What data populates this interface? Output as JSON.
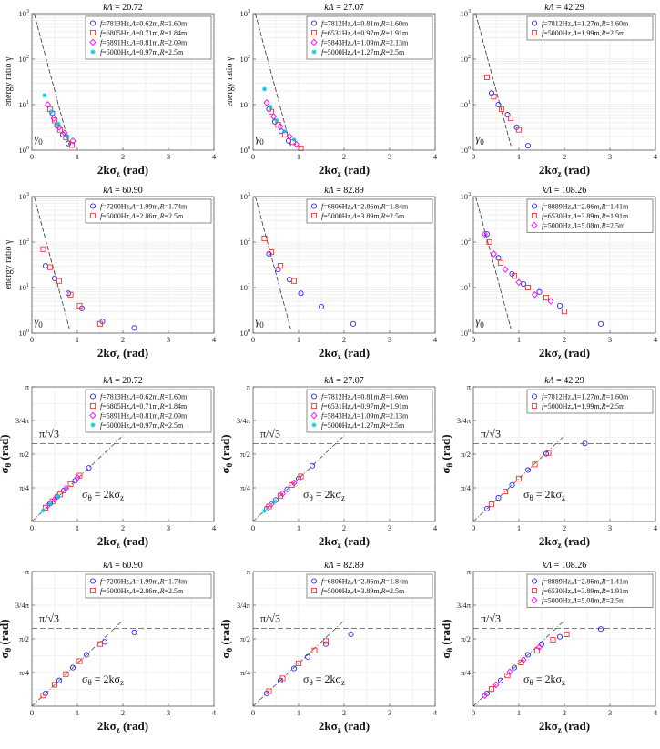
{
  "colors": {
    "blue": "#2a2aff",
    "red": "#ff3030",
    "magenta": "#ff00ff",
    "cyan": "#00c8dc",
    "grid": "#e6e6e6",
    "frame": "#555555",
    "ref": "#333333"
  },
  "chart_data": [
    {
      "type": "scatter",
      "panel_kind": "gamma",
      "title": "kΛ = 20.72",
      "xlabel": "2kσ_z (rad)",
      "ylabel": "energy ratio γ",
      "xlim": [
        0,
        4
      ],
      "ylim": [
        1,
        1000
      ],
      "yscale": "log",
      "grid": true,
      "legend": "top-right",
      "annotations": [
        "γ0"
      ],
      "series": [
        {
          "name": "f=7813Hz,Λ=0.62m,R=1.60m",
          "marker": "circle",
          "color": "blue",
          "x": [
            0.45,
            0.55,
            0.68,
            0.8
          ],
          "y": [
            6.5,
            3.5,
            2.2,
            1.4
          ]
        },
        {
          "name": "f=6805Hz,Λ=0.71m,R=1.84m",
          "marker": "square",
          "color": "red",
          "x": [
            0.4,
            0.5,
            0.62,
            0.75,
            0.88
          ],
          "y": [
            8,
            4.5,
            2.8,
            1.9,
            1.3
          ]
        },
        {
          "name": "f=5891Hz,Λ=0.81m,R=2.09m",
          "marker": "diamond",
          "color": "magenta",
          "x": [
            0.35,
            0.48,
            0.6,
            0.72,
            0.9
          ],
          "y": [
            10,
            5,
            3.2,
            2.4,
            1.6
          ]
        },
        {
          "name": "f=5000Hz,Λ=0.97m,R=2.5m",
          "marker": "star",
          "color": "cyan",
          "x": [
            0.28,
            0.42,
            0.58,
            0.78
          ],
          "y": [
            16,
            7,
            3.8,
            2.0
          ]
        }
      ]
    },
    {
      "type": "scatter",
      "panel_kind": "gamma",
      "title": "kΛ = 27.07",
      "xlabel": "2kσ_z (rad)",
      "ylabel": "energy ratio γ",
      "xlim": [
        0,
        4
      ],
      "ylim": [
        1,
        1000
      ],
      "yscale": "log",
      "grid": true,
      "legend": "top-right",
      "annotations": [
        "γ0"
      ],
      "series": [
        {
          "name": "f=7812Hz,Λ=0.81m,R=1.60m",
          "marker": "circle",
          "color": "blue",
          "x": [
            0.35,
            0.48,
            0.62,
            0.78
          ],
          "y": [
            8,
            4.2,
            2.6,
            1.6
          ]
        },
        {
          "name": "f=6531Hz,Λ=0.97m,R=1.91m",
          "marker": "square",
          "color": "red",
          "x": [
            0.4,
            0.55,
            0.7,
            0.88,
            1.05
          ],
          "y": [
            7,
            3.6,
            2.2,
            1.5,
            1.1
          ]
        },
        {
          "name": "f=5843Hz,Λ=1.09m,R=2.13m",
          "marker": "diamond",
          "color": "magenta",
          "x": [
            0.3,
            0.45,
            0.6,
            0.8,
            0.95
          ],
          "y": [
            11,
            5.5,
            3.3,
            2.0,
            1.35
          ]
        },
        {
          "name": "f=5000Hz,Λ=1.27m,R=2.5m",
          "marker": "star",
          "color": "cyan",
          "x": [
            0.25,
            0.38,
            0.52,
            0.7,
            0.9
          ],
          "y": [
            22,
            9,
            4.5,
            2.6,
            1.7
          ]
        }
      ]
    },
    {
      "type": "scatter",
      "panel_kind": "gamma",
      "title": "kΛ = 42.29",
      "xlabel": "2kσ_z (rad)",
      "ylabel": "",
      "xlim": [
        0,
        4
      ],
      "ylim": [
        1,
        1000
      ],
      "yscale": "log",
      "grid": true,
      "legend": "top-right",
      "annotations": [
        "γ0"
      ],
      "series": [
        {
          "name": "f=7812Hz,Λ=1.27m,R=1.60m",
          "marker": "circle",
          "color": "blue",
          "x": [
            0.4,
            0.55,
            0.75,
            0.95,
            1.2
          ],
          "y": [
            18,
            10,
            6,
            3.2,
            1.25
          ]
        },
        {
          "name": "f=5000Hz,Λ=1.99m,R=2.5m",
          "marker": "square",
          "color": "red",
          "x": [
            0.3,
            0.45,
            0.62,
            0.82,
            1.0
          ],
          "y": [
            40,
            15,
            8,
            5,
            2.8
          ]
        }
      ]
    },
    {
      "type": "scatter",
      "panel_kind": "gamma",
      "title": "kΛ = 60.90",
      "xlabel": "2kσ_z (rad)",
      "ylabel": "energy ratio γ",
      "xlim": [
        0,
        4
      ],
      "ylim": [
        1,
        1000
      ],
      "yscale": "log",
      "grid": true,
      "legend": "top-right",
      "annotations": [
        "γ0"
      ],
      "series": [
        {
          "name": "f=7200Hz,Λ=1.99m,R=1.74m",
          "marker": "circle",
          "color": "blue",
          "x": [
            0.3,
            0.5,
            0.8,
            1.1,
            1.55,
            2.25
          ],
          "y": [
            30,
            16,
            7.5,
            3.5,
            1.8,
            1.3
          ]
        },
        {
          "name": "f=5000Hz,Λ=2.86m,R=2.5m",
          "marker": "square",
          "color": "red",
          "x": [
            0.25,
            0.4,
            0.6,
            0.85,
            1.05,
            1.5
          ],
          "y": [
            70,
            28,
            14,
            7,
            4,
            1.6
          ]
        }
      ]
    },
    {
      "type": "scatter",
      "panel_kind": "gamma",
      "title": "kΛ = 82.89",
      "xlabel": "2kσ_z (rad)",
      "ylabel": "",
      "xlim": [
        0,
        4
      ],
      "ylim": [
        1,
        1000
      ],
      "yscale": "log",
      "grid": true,
      "legend": "top-right",
      "annotations": [
        "γ0"
      ],
      "series": [
        {
          "name": "f=6806Hz,Λ=2.86m,R=1.84m",
          "marker": "circle",
          "color": "blue",
          "x": [
            0.35,
            0.55,
            0.8,
            1.05,
            1.5,
            2.2
          ],
          "y": [
            55,
            25,
            15,
            7.5,
            3.8,
            1.6
          ]
        },
        {
          "name": "f=5000Hz,Λ=3.89m,R=2.5m",
          "marker": "square",
          "color": "red",
          "x": [
            0.25,
            0.4,
            0.6,
            0.9
          ],
          "y": [
            120,
            60,
            30,
            14
          ]
        }
      ]
    },
    {
      "type": "scatter",
      "panel_kind": "gamma",
      "title": "kΛ = 108.26",
      "xlabel": "2kσ_z (rad)",
      "ylabel": "",
      "xlim": [
        0,
        4
      ],
      "ylim": [
        1,
        1000
      ],
      "yscale": "log",
      "grid": true,
      "legend": "top-right",
      "annotations": [
        "γ0"
      ],
      "series": [
        {
          "name": "f=8889Hz,Λ=2.86m,R=1.41m",
          "marker": "circle",
          "color": "blue",
          "x": [
            0.3,
            0.55,
            0.85,
            1.1,
            1.45,
            1.9,
            2.8
          ],
          "y": [
            150,
            45,
            20,
            12,
            8,
            4,
            1.6
          ]
        },
        {
          "name": "f=6530Hz,Λ=3.89m,R=1.91m",
          "marker": "square",
          "color": "red",
          "x": [
            0.35,
            0.6,
            0.9,
            1.2,
            1.6,
            2.0
          ],
          "y": [
            100,
            35,
            18,
            10,
            6,
            3
          ]
        },
        {
          "name": "f=5000Hz,Λ=5.08m,R=2.5m",
          "marker": "diamond",
          "color": "magenta",
          "x": [
            0.25,
            0.45,
            0.7,
            1.0,
            1.35,
            1.7
          ],
          "y": [
            150,
            55,
            25,
            13,
            7,
            5
          ]
        }
      ]
    },
    {
      "type": "scatter",
      "panel_kind": "sigma",
      "title": "kΛ = 20.72",
      "xlabel": "2kσ_z (rad)",
      "ylabel": "σθ (rad)",
      "xlim": [
        0,
        4
      ],
      "ylim": [
        0,
        3.14159
      ],
      "ytick_labels": [
        "π/4",
        "π/2",
        "3/4π",
        "π"
      ],
      "grid": true,
      "legend": "top-right",
      "annotations": [
        "π/√3",
        "σθ = 2kσz"
      ],
      "series": [
        {
          "name": "f=7813Hz,Λ=0.62m,R=1.60m",
          "marker": "circle",
          "color": "blue",
          "x": [
            0.4,
            0.55,
            0.7,
            0.95,
            1.25
          ],
          "y": [
            0.42,
            0.58,
            0.72,
            0.95,
            1.25
          ]
        },
        {
          "name": "f=6805Hz,Λ=0.71m,R=1.84m",
          "marker": "square",
          "color": "red",
          "x": [
            0.3,
            0.45,
            0.62,
            0.85,
            1.05
          ],
          "y": [
            0.32,
            0.47,
            0.63,
            0.87,
            1.07
          ]
        },
        {
          "name": "f=5891Hz,Λ=0.81m,R=2.09m",
          "marker": "diamond",
          "color": "magenta",
          "x": [
            0.35,
            0.5,
            0.75,
            1.0
          ],
          "y": [
            0.37,
            0.52,
            0.77,
            1.02
          ]
        },
        {
          "name": "f=5000Hz,Λ=0.97m,R=2.5m",
          "marker": "star",
          "color": "cyan",
          "x": [
            0.25,
            0.4,
            0.58
          ],
          "y": [
            0.26,
            0.4,
            0.58
          ]
        }
      ]
    },
    {
      "type": "scatter",
      "panel_kind": "sigma",
      "title": "kΛ = 27.07",
      "xlabel": "2kσ_z (rad)",
      "ylabel": "σθ (rad)",
      "xlim": [
        0,
        4
      ],
      "ylim": [
        0,
        3.14159
      ],
      "ytick_labels": [
        "π/4",
        "π/2",
        "3/4π",
        "π"
      ],
      "grid": true,
      "legend": "top-right",
      "annotations": [
        "π/√3",
        "σθ = 2kσz"
      ],
      "series": [
        {
          "name": "f=7812Hz,Λ=0.81m,R=1.60m",
          "marker": "circle",
          "color": "blue",
          "x": [
            0.3,
            0.5,
            0.75,
            1.0,
            1.3
          ],
          "y": [
            0.3,
            0.5,
            0.75,
            1.0,
            1.3
          ]
        },
        {
          "name": "f=6531Hz,Λ=0.97m,R=1.91m",
          "marker": "square",
          "color": "red",
          "x": [
            0.35,
            0.6,
            0.85,
            1.05
          ],
          "y": [
            0.35,
            0.6,
            0.85,
            1.05
          ]
        },
        {
          "name": "f=5843Hz,Λ=1.09m,R=2.13m",
          "marker": "diamond",
          "color": "magenta",
          "x": [
            0.4,
            0.65,
            0.9
          ],
          "y": [
            0.4,
            0.65,
            0.9
          ]
        },
        {
          "name": "f=5000Hz,Λ=1.27m,R=2.5m",
          "marker": "star",
          "color": "cyan",
          "x": [
            0.25,
            0.45
          ],
          "y": [
            0.25,
            0.45
          ]
        }
      ]
    },
    {
      "type": "scatter",
      "panel_kind": "sigma",
      "title": "kΛ = 42.29",
      "xlabel": "2kσ_z (rad)",
      "ylabel": "σθ (rad)",
      "xlim": [
        0,
        4
      ],
      "ylim": [
        0,
        3.14159
      ],
      "ytick_labels": [
        "π/4",
        "π/2",
        "3/4π",
        "π"
      ],
      "grid": true,
      "legend": "top-right",
      "annotations": [
        "π/√3",
        "σθ = 2kσz"
      ],
      "series": [
        {
          "name": "f=7812Hz,Λ=1.27m,R=1.60m",
          "marker": "circle",
          "color": "blue",
          "x": [
            0.3,
            0.55,
            0.85,
            1.2,
            1.6,
            2.45
          ],
          "y": [
            0.3,
            0.55,
            0.85,
            1.2,
            1.58,
            1.82
          ]
        },
        {
          "name": "f=5000Hz,Λ=1.99m,R=2.5m",
          "marker": "square",
          "color": "red",
          "x": [
            0.4,
            0.7,
            1.0,
            1.35,
            1.65
          ],
          "y": [
            0.4,
            0.7,
            1.0,
            1.33,
            1.6
          ]
        }
      ]
    },
    {
      "type": "scatter",
      "panel_kind": "sigma",
      "title": "kΛ = 60.90",
      "xlabel": "2kσ_z (rad)",
      "ylabel": "σθ (rad)",
      "xlim": [
        0,
        4
      ],
      "ylim": [
        0,
        3.14159
      ],
      "ytick_labels": [
        "π/4",
        "π/2",
        "3/4π",
        "π"
      ],
      "grid": true,
      "legend": "top-right",
      "annotations": [
        "π/√3",
        "σθ = 2kσz"
      ],
      "series": [
        {
          "name": "f=7200Hz,Λ=1.99m,R=1.74m",
          "marker": "circle",
          "color": "blue",
          "x": [
            0.3,
            0.6,
            0.9,
            1.2,
            1.6,
            2.25
          ],
          "y": [
            0.3,
            0.6,
            0.9,
            1.2,
            1.5,
            1.72
          ]
        },
        {
          "name": "f=5000Hz,Λ=2.86m,R=2.5m",
          "marker": "square",
          "color": "red",
          "x": [
            0.25,
            0.5,
            0.75,
            1.05,
            1.5
          ],
          "y": [
            0.25,
            0.5,
            0.75,
            1.05,
            1.45
          ]
        }
      ]
    },
    {
      "type": "scatter",
      "panel_kind": "sigma",
      "title": "kΛ = 82.89",
      "xlabel": "2kσ_z (rad)",
      "ylabel": "σθ (rad)",
      "xlim": [
        0,
        4
      ],
      "ylim": [
        0,
        3.14159
      ],
      "ytick_labels": [
        "π/4",
        "π/2",
        "3/4π",
        "π"
      ],
      "grid": true,
      "legend": "top-right",
      "annotations": [
        "π/√3",
        "σθ = 2kσz"
      ],
      "series": [
        {
          "name": "f=6806Hz,Λ=2.86m,R=1.84m",
          "marker": "circle",
          "color": "blue",
          "x": [
            0.3,
            0.6,
            0.9,
            1.2,
            1.6,
            2.15
          ],
          "y": [
            0.3,
            0.6,
            0.88,
            1.15,
            1.45,
            1.68
          ]
        },
        {
          "name": "f=5000Hz,Λ=3.89m,R=2.5m",
          "marker": "square",
          "color": "red",
          "x": [
            0.35,
            0.65,
            1.0,
            1.35,
            1.6
          ],
          "y": [
            0.35,
            0.65,
            1.0,
            1.3,
            1.52
          ]
        }
      ]
    },
    {
      "type": "scatter",
      "panel_kind": "sigma",
      "title": "kΛ = 108.26",
      "xlabel": "2kσ_z (rad)",
      "ylabel": "σθ (rad)",
      "xlim": [
        0,
        4
      ],
      "ylim": [
        0,
        3.14159
      ],
      "ytick_labels": [
        "π/4",
        "π/2",
        "3/4π",
        "π"
      ],
      "grid": true,
      "legend": "top-right",
      "annotations": [
        "π/√3",
        "σθ = 2kσz"
      ],
      "series": [
        {
          "name": "f=8889Hz,Λ=2.86m,R=1.41m",
          "marker": "circle",
          "color": "blue",
          "x": [
            0.3,
            0.6,
            0.9,
            1.2,
            1.5,
            1.9,
            2.8
          ],
          "y": [
            0.3,
            0.6,
            0.9,
            1.2,
            1.45,
            1.62,
            1.8
          ]
        },
        {
          "name": "f=6530Hz,Λ=3.89m,R=1.91m",
          "marker": "square",
          "color": "red",
          "x": [
            0.4,
            0.75,
            1.05,
            1.4,
            1.75,
            2.05
          ],
          "y": [
            0.4,
            0.72,
            1.02,
            1.3,
            1.55,
            1.68
          ]
        },
        {
          "name": "f=5000Hz,Λ=5.08m,R=2.5m",
          "marker": "diamond",
          "color": "magenta",
          "x": [
            0.25,
            0.5,
            0.8,
            1.1,
            1.45
          ],
          "y": [
            0.25,
            0.5,
            0.8,
            1.08,
            1.38
          ]
        }
      ]
    }
  ]
}
